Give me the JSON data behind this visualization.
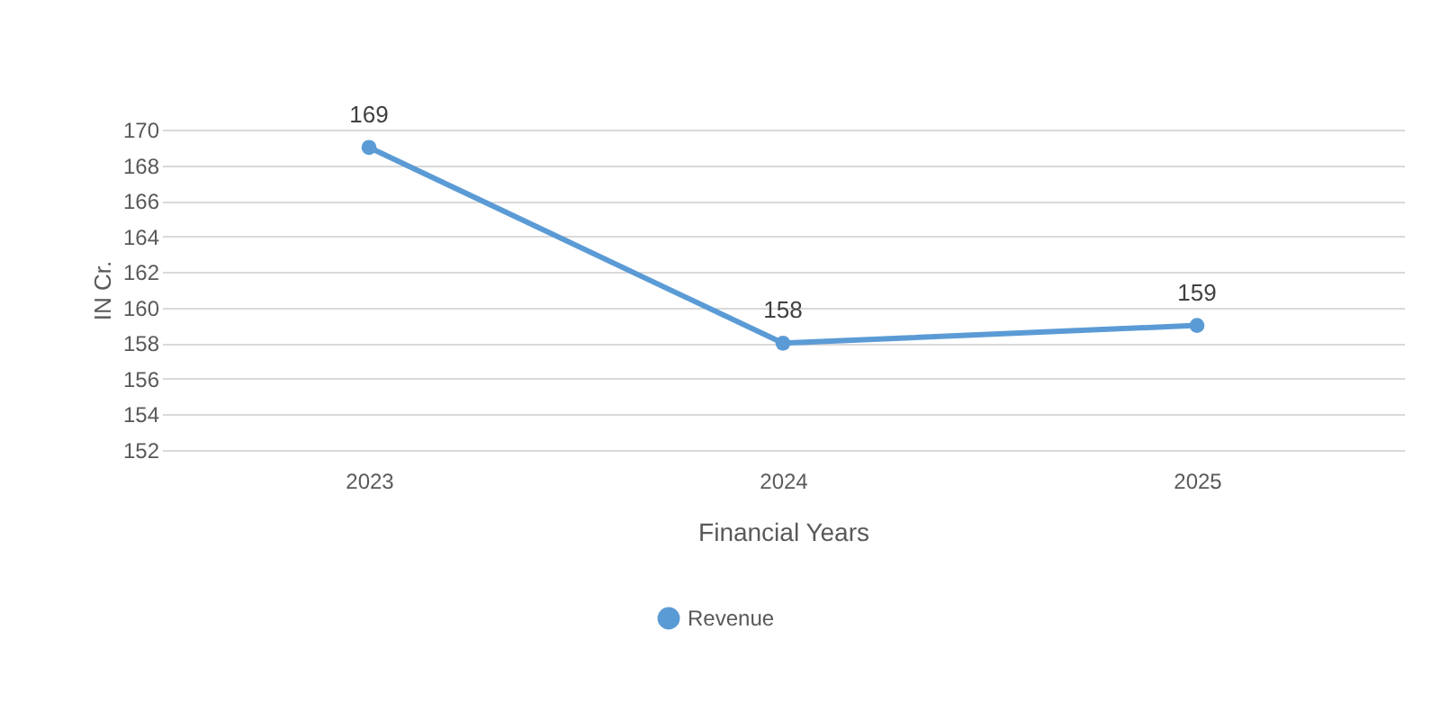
{
  "chart_data": {
    "type": "line",
    "xlabel": "Financial Years",
    "ylabel": "IN Cr.",
    "categories": [
      "2023",
      "2024",
      "2025"
    ],
    "series": [
      {
        "name": "Revenue",
        "color": "#5b9bd5",
        "values": [
          169,
          158,
          159
        ]
      }
    ],
    "ylim": [
      152,
      170
    ],
    "yticks": [
      152,
      154,
      156,
      158,
      160,
      162,
      164,
      166,
      168,
      170
    ],
    "grid": "y",
    "legend": "bottom",
    "marker": "circle",
    "data_labels": true
  }
}
